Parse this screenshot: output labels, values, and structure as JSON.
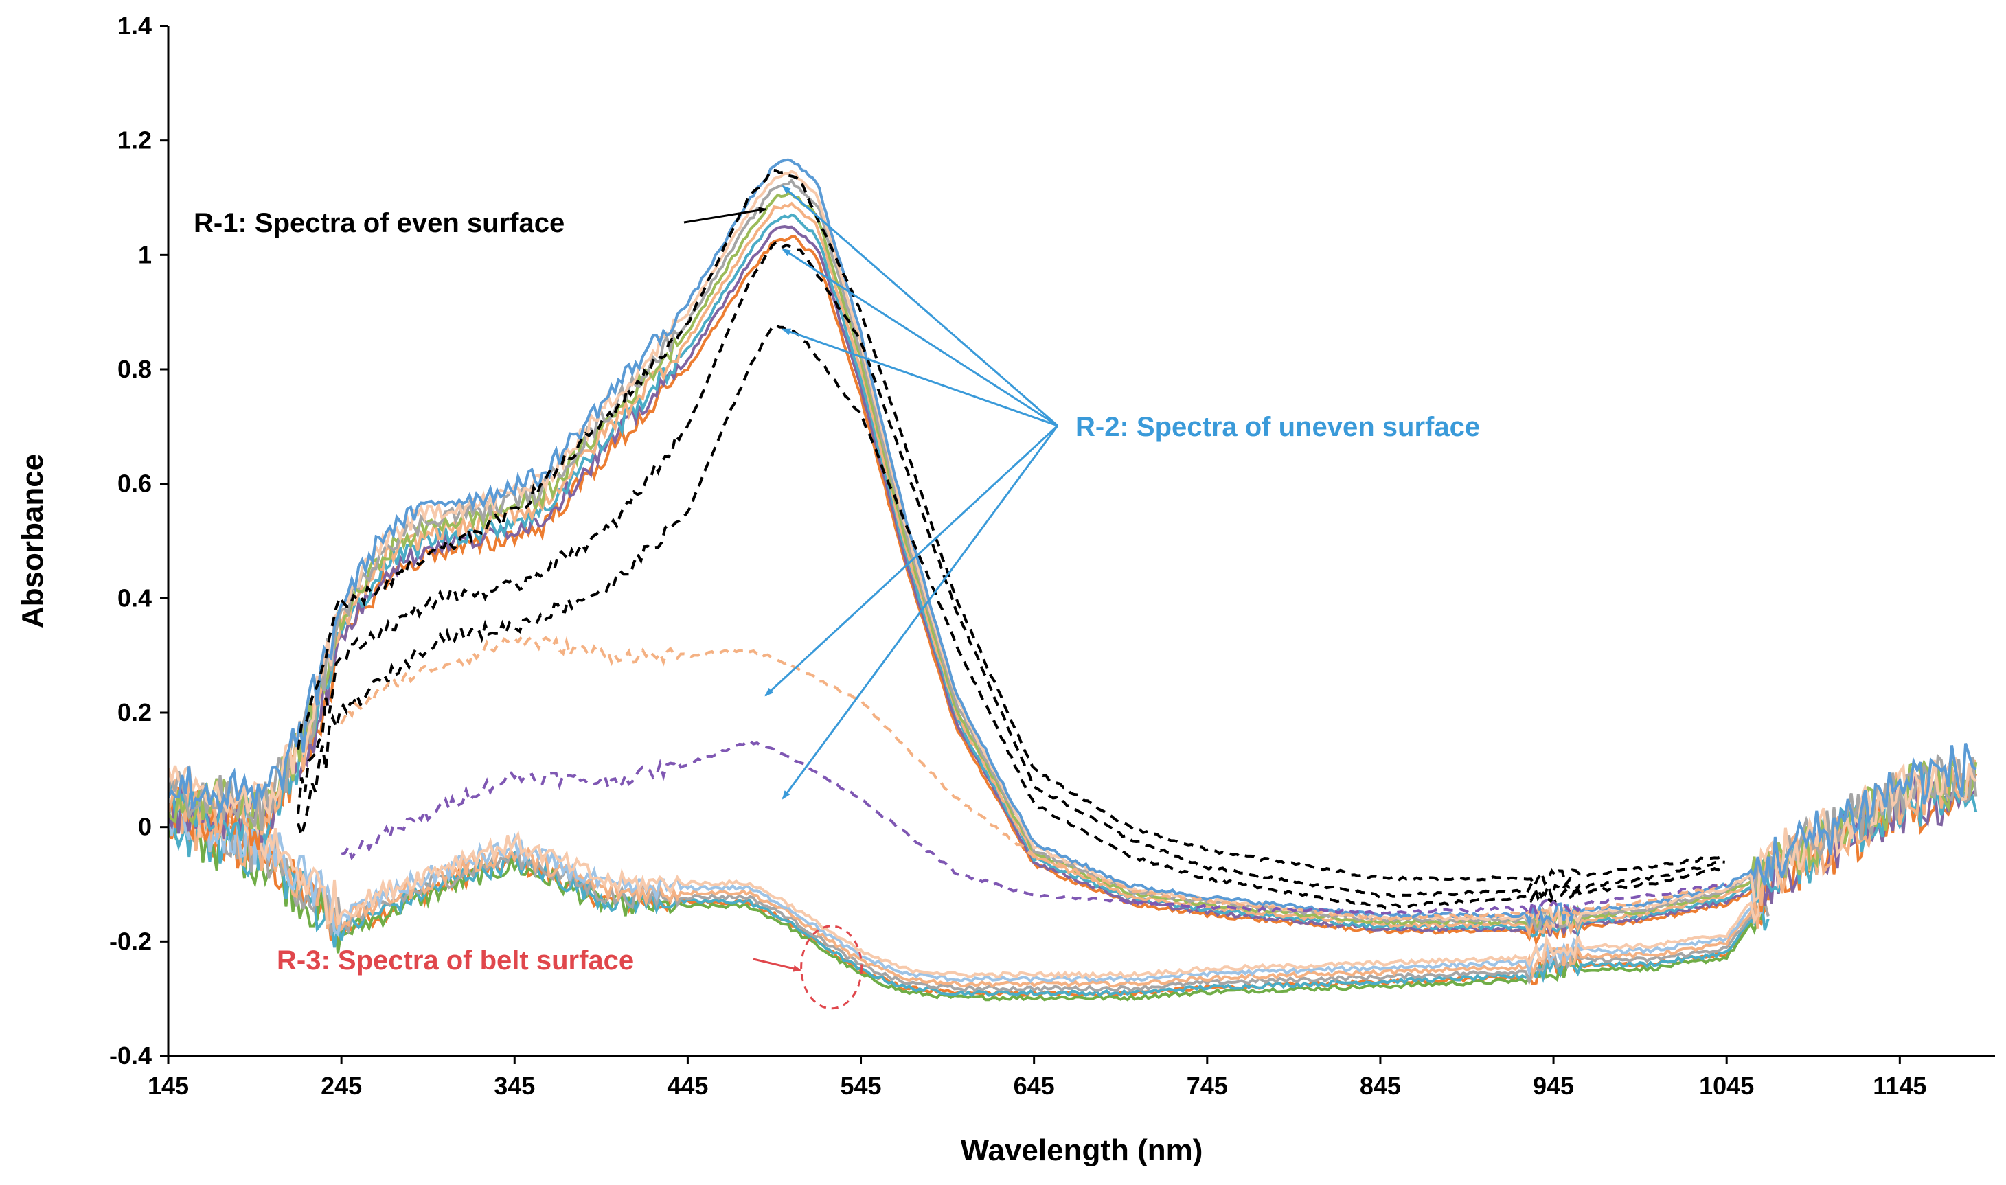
{
  "chart_data": {
    "type": "line",
    "title": "",
    "xlabel": "Wavelength (nm)",
    "ylabel": "Absorbance",
    "xlim": [
      145,
      1200
    ],
    "ylim": [
      -0.4,
      1.4
    ],
    "x_ticks": [
      145,
      245,
      345,
      445,
      545,
      645,
      745,
      845,
      945,
      1045,
      1145
    ],
    "y_ticks": [
      -0.4,
      -0.2,
      0,
      0.2,
      0.4,
      0.6,
      0.8,
      1,
      1.2,
      1.4
    ],
    "y_tick_labels": [
      "-0.4",
      "-0.2",
      "0",
      "0.2",
      "0.4",
      "0.6",
      "0.8",
      "1",
      "1.2",
      "1.4"
    ],
    "grid": false,
    "groups": [
      {
        "name": "R-1: Spectra of even surface",
        "style": "solid",
        "colors": [
          "#ed7d31",
          "#8064a2",
          "#4bacc6",
          "#f4b183",
          "#9bbb59",
          "#a5a5a5",
          "#f7caac",
          "#5b9bd5"
        ],
        "representative": {
          "x": [
            145,
            200,
            225,
            245,
            270,
            300,
            330,
            345,
            360,
            400,
            445,
            480,
            495,
            505,
            520,
            545,
            570,
            600,
            645,
            700,
            745,
            845,
            940,
            1000,
            1045,
            1070,
            1090,
            1145,
            1190
          ],
          "y": [
            0.05,
            0.02,
            0.15,
            0.35,
            0.47,
            0.52,
            0.53,
            0.55,
            0.56,
            0.7,
            0.85,
            1.02,
            1.08,
            1.09,
            1.05,
            0.8,
            0.5,
            0.2,
            -0.05,
            -0.12,
            -0.14,
            -0.17,
            -0.17,
            -0.15,
            -0.12,
            -0.08,
            -0.05,
            0.05,
            0.08
          ]
        }
      },
      {
        "name": "R-2: Spectra of uneven surface",
        "style": "dashed",
        "series": [
          {
            "color": "#000000",
            "x": [
              220,
              245,
              300,
              345,
              400,
              445,
              480,
              495,
              510,
              545,
              600,
              645,
              700,
              745,
              845,
              945,
              1000,
              1045
            ],
            "y": [
              0.15,
              0.38,
              0.48,
              0.55,
              0.72,
              0.88,
              1.1,
              1.15,
              1.13,
              0.9,
              0.4,
              0.1,
              0.0,
              -0.04,
              -0.09,
              -0.09,
              -0.07,
              -0.05
            ]
          },
          {
            "color": "#000000",
            "x": [
              220,
              245,
              300,
              345,
              400,
              445,
              480,
              495,
              510,
              545,
              600,
              645,
              700,
              745,
              845,
              945,
              1000,
              1045
            ],
            "y": [
              0.05,
              0.3,
              0.4,
              0.42,
              0.52,
              0.7,
              0.95,
              1.02,
              1.01,
              0.85,
              0.38,
              0.07,
              -0.02,
              -0.07,
              -0.12,
              -0.11,
              -0.09,
              -0.06
            ]
          },
          {
            "color": "#000000",
            "x": [
              220,
              245,
              300,
              345,
              400,
              445,
              480,
              495,
              510,
              545,
              600,
              645,
              700,
              745,
              845,
              945,
              1000,
              1045
            ],
            "y": [
              0.0,
              0.2,
              0.33,
              0.35,
              0.42,
              0.55,
              0.8,
              0.88,
              0.86,
              0.72,
              0.32,
              0.04,
              -0.05,
              -0.09,
              -0.14,
              -0.12,
              -0.1,
              -0.07
            ]
          },
          {
            "color": "#f4b183",
            "x": [
              245,
              280,
              320,
              345,
              400,
              445,
              480,
              500,
              545,
              600,
              645,
              700,
              745,
              845,
              945,
              1000,
              1045
            ],
            "y": [
              0.19,
              0.26,
              0.3,
              0.33,
              0.3,
              0.3,
              0.31,
              0.29,
              0.22,
              0.05,
              -0.05,
              -0.11,
              -0.13,
              -0.16,
              -0.15,
              -0.13,
              -0.1
            ]
          },
          {
            "color": "#7f57b3",
            "x": [
              245,
              280,
              320,
              345,
              400,
              445,
              480,
              500,
              545,
              600,
              645,
              700,
              745,
              845,
              945,
              1000,
              1045
            ],
            "y": [
              -0.05,
              0.0,
              0.06,
              0.09,
              0.08,
              0.11,
              0.15,
              0.13,
              0.05,
              -0.08,
              -0.12,
              -0.13,
              -0.14,
              -0.15,
              -0.14,
              -0.12,
              -0.1
            ]
          }
        ]
      },
      {
        "name": "R-3: Spectra of belt surface",
        "style": "solid",
        "colors": [
          "#ed7d31",
          "#70ad47",
          "#4bacc6",
          "#a5a5a5",
          "#f4b183",
          "#9dc3e6",
          "#f7caac"
        ],
        "representative": {
          "x": [
            145,
            200,
            225,
            245,
            280,
            320,
            345,
            370,
            400,
            445,
            480,
            500,
            520,
            545,
            570,
            600,
            645,
            700,
            745,
            845,
            930,
            945,
            1000,
            1045,
            1070
          ],
          "y": [
            0.0,
            -0.05,
            -0.12,
            -0.18,
            -0.13,
            -0.08,
            -0.06,
            -0.09,
            -0.13,
            -0.13,
            -0.13,
            -0.16,
            -0.2,
            -0.25,
            -0.28,
            -0.29,
            -0.29,
            -0.29,
            -0.28,
            -0.27,
            -0.26,
            -0.24,
            -0.24,
            -0.22,
            -0.12
          ]
        }
      }
    ],
    "annotations": [
      {
        "text": "R-1: Spectra of even surface",
        "color": "#000000",
        "arrow_to": [
          [
            490,
            1.08
          ]
        ]
      },
      {
        "text": "R-2: Spectra of uneven surface",
        "color": "#3a9ad9",
        "arrow_to": [
          [
            500,
            1.12
          ],
          [
            500,
            1.01
          ],
          [
            500,
            0.87
          ],
          [
            490,
            0.23
          ],
          [
            500,
            0.05
          ]
        ]
      },
      {
        "text": "R-3: Spectra of belt surface",
        "color": "#e0474c",
        "arrow_to": [
          [
            510,
            -0.25
          ]
        ]
      }
    ]
  }
}
